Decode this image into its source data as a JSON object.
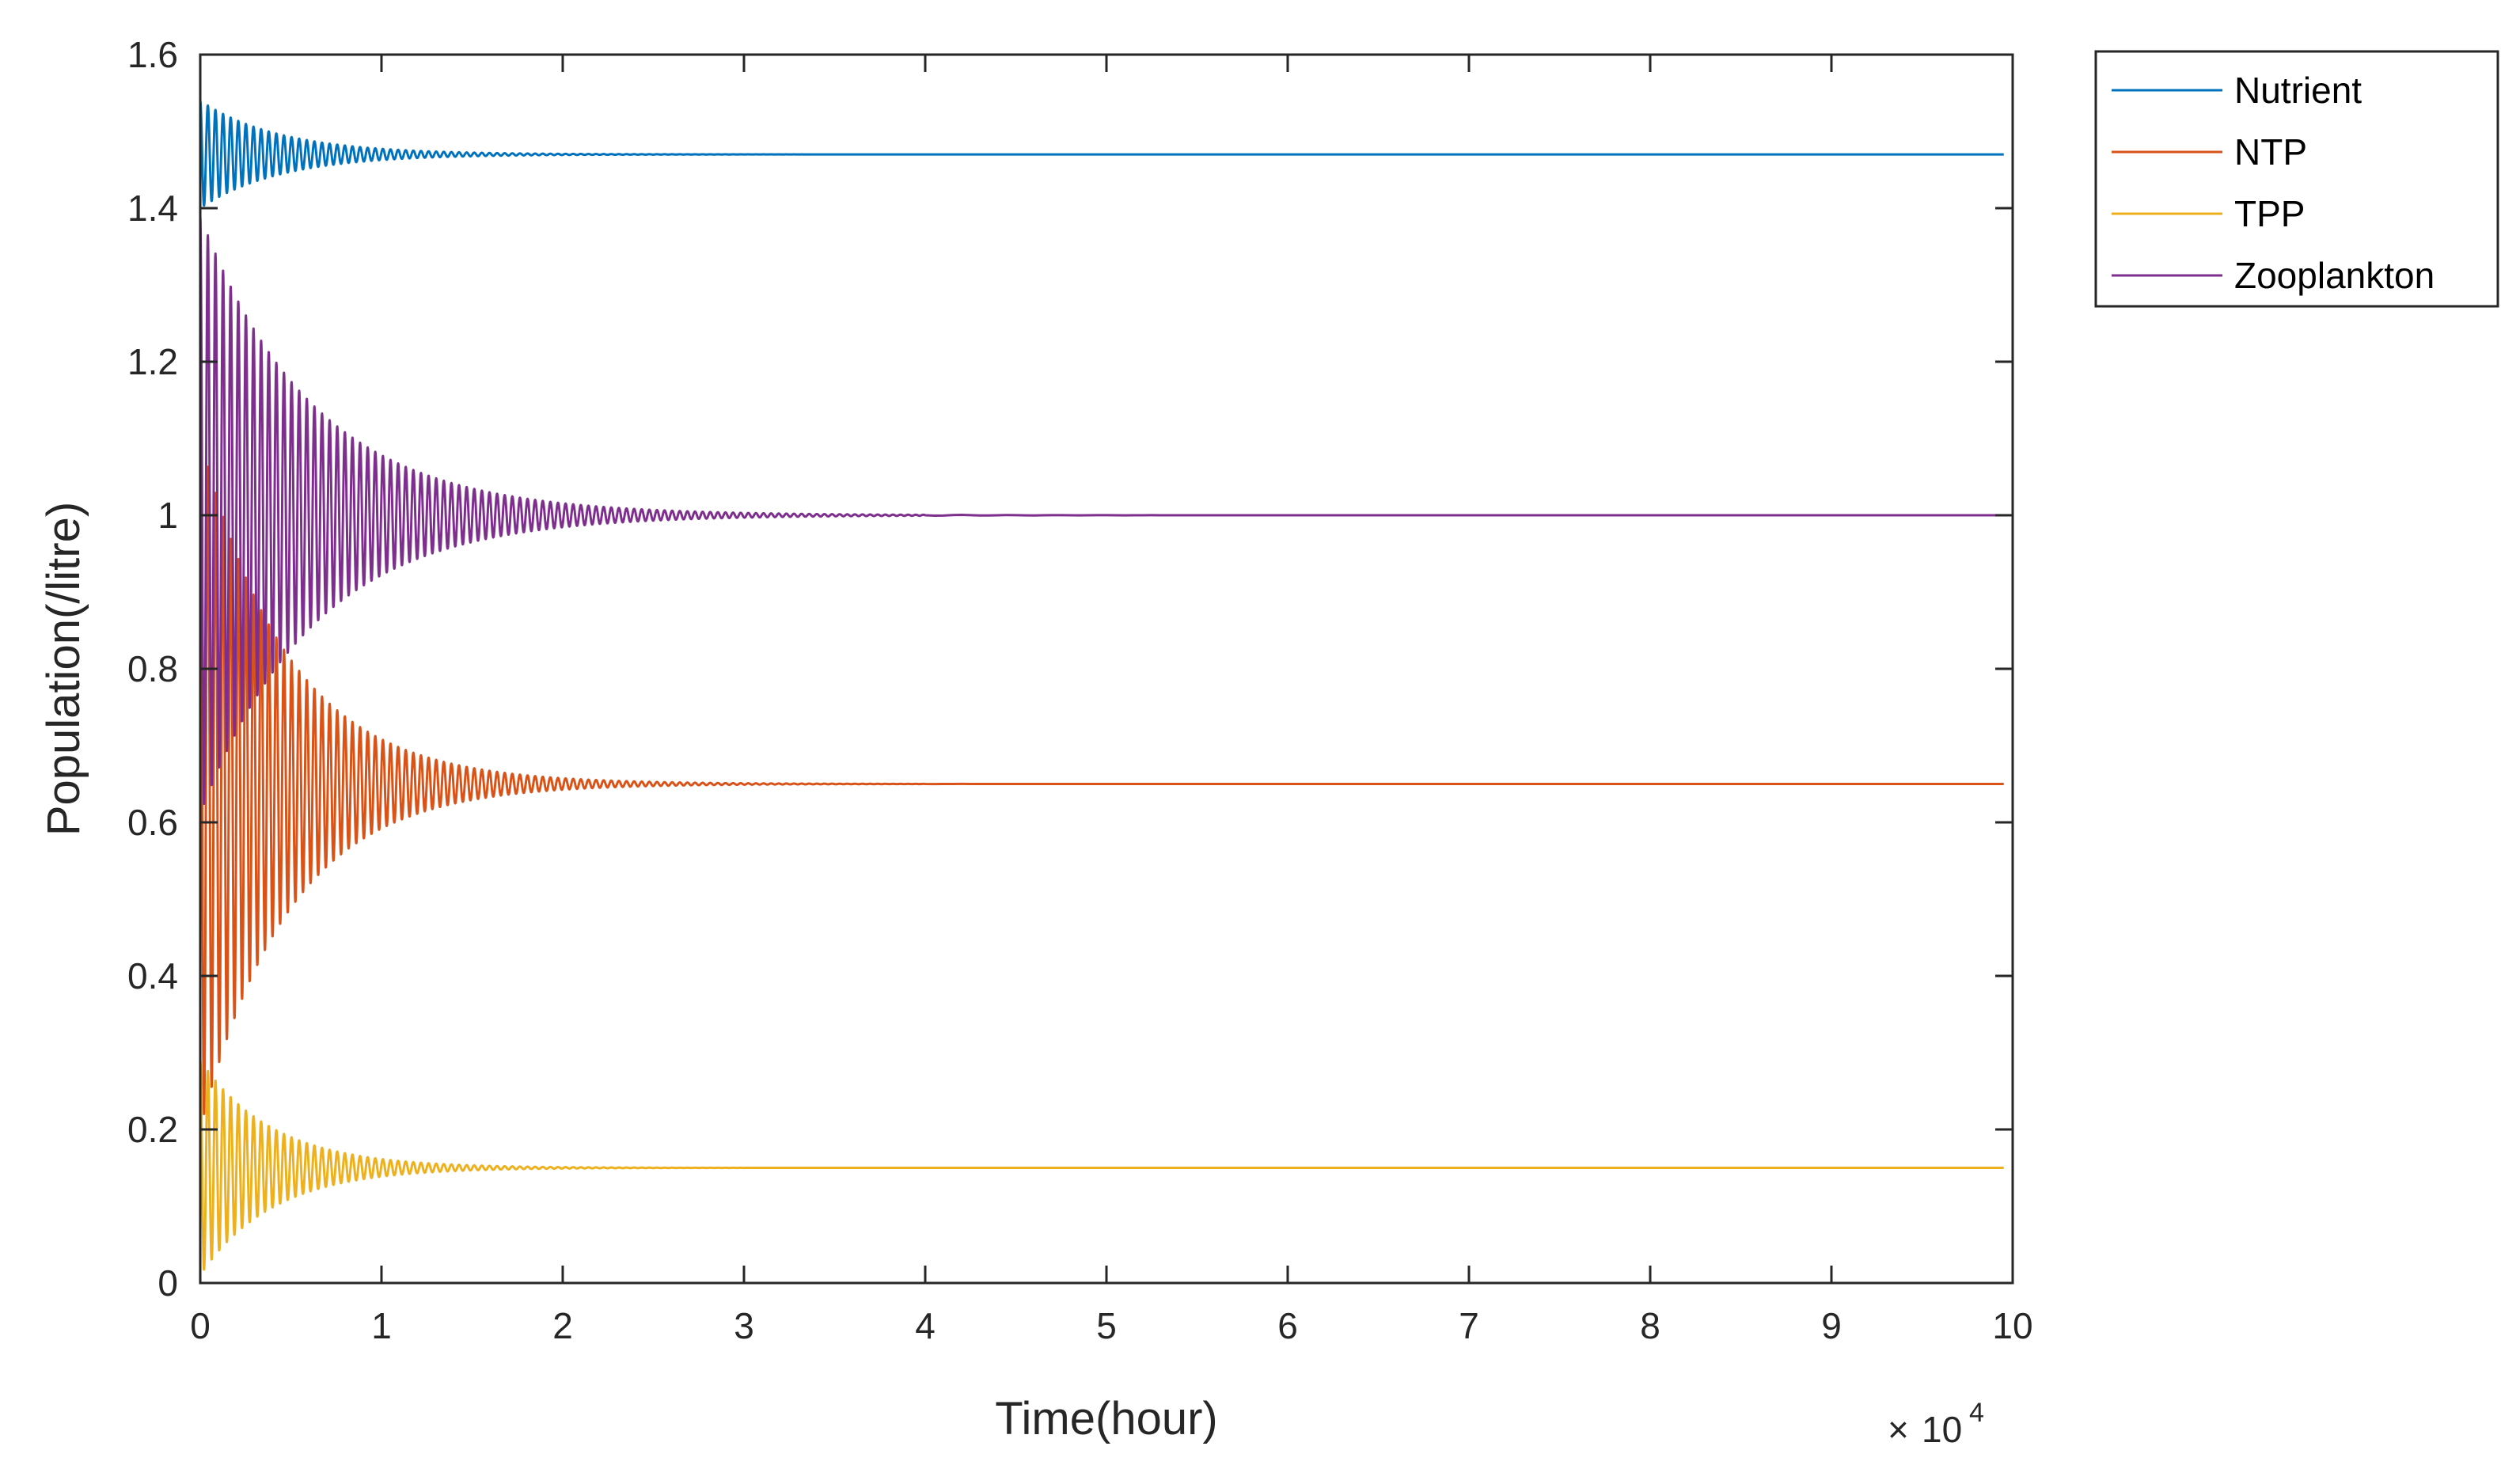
{
  "chart_data": {
    "type": "line",
    "xlabel": "Time(hour)",
    "ylabel": "Population(/litre)",
    "xlim": [
      0,
      100000
    ],
    "ylim": [
      0,
      1.6
    ],
    "x_ticks": [
      0,
      10000,
      20000,
      30000,
      40000,
      50000,
      60000,
      70000,
      80000,
      90000,
      100000
    ],
    "x_tick_labels": [
      "0",
      "1",
      "2",
      "3",
      "4",
      "5",
      "6",
      "7",
      "8",
      "9",
      "10"
    ],
    "x_multiplier": {
      "base": "10",
      "exponent": "4"
    },
    "y_ticks": [
      0,
      0.2,
      0.4,
      0.6,
      0.8,
      1.0,
      1.2,
      1.4,
      1.6
    ],
    "y_tick_labels": [
      "0",
      "0.2",
      "0.4",
      "0.6",
      "0.8",
      "1",
      "1.2",
      "1.4",
      "1.6"
    ],
    "grid": false,
    "legend_position": "outside-top-right",
    "series": [
      {
        "name": "Nutrient",
        "color": "#0072BD",
        "equilibrium": 1.47,
        "initial": 1.54,
        "first_min": 1.41,
        "decay_to_hour": 20000
      },
      {
        "name": "NTP",
        "color": "#D95319",
        "equilibrium": 0.65,
        "initial": 1.1,
        "first_min": 0.37,
        "decay_to_hour": 22000
      },
      {
        "name": "TPP",
        "color": "#EDB120",
        "equilibrium": 0.15,
        "initial": 0.29,
        "first_min": 0.03,
        "decay_to_hour": 18000
      },
      {
        "name": "Zooplankton",
        "color": "#7E2F8E",
        "equilibrium": 1.0,
        "initial": 1.39,
        "first_min": 0.7,
        "decay_to_hour": 28000
      }
    ]
  }
}
